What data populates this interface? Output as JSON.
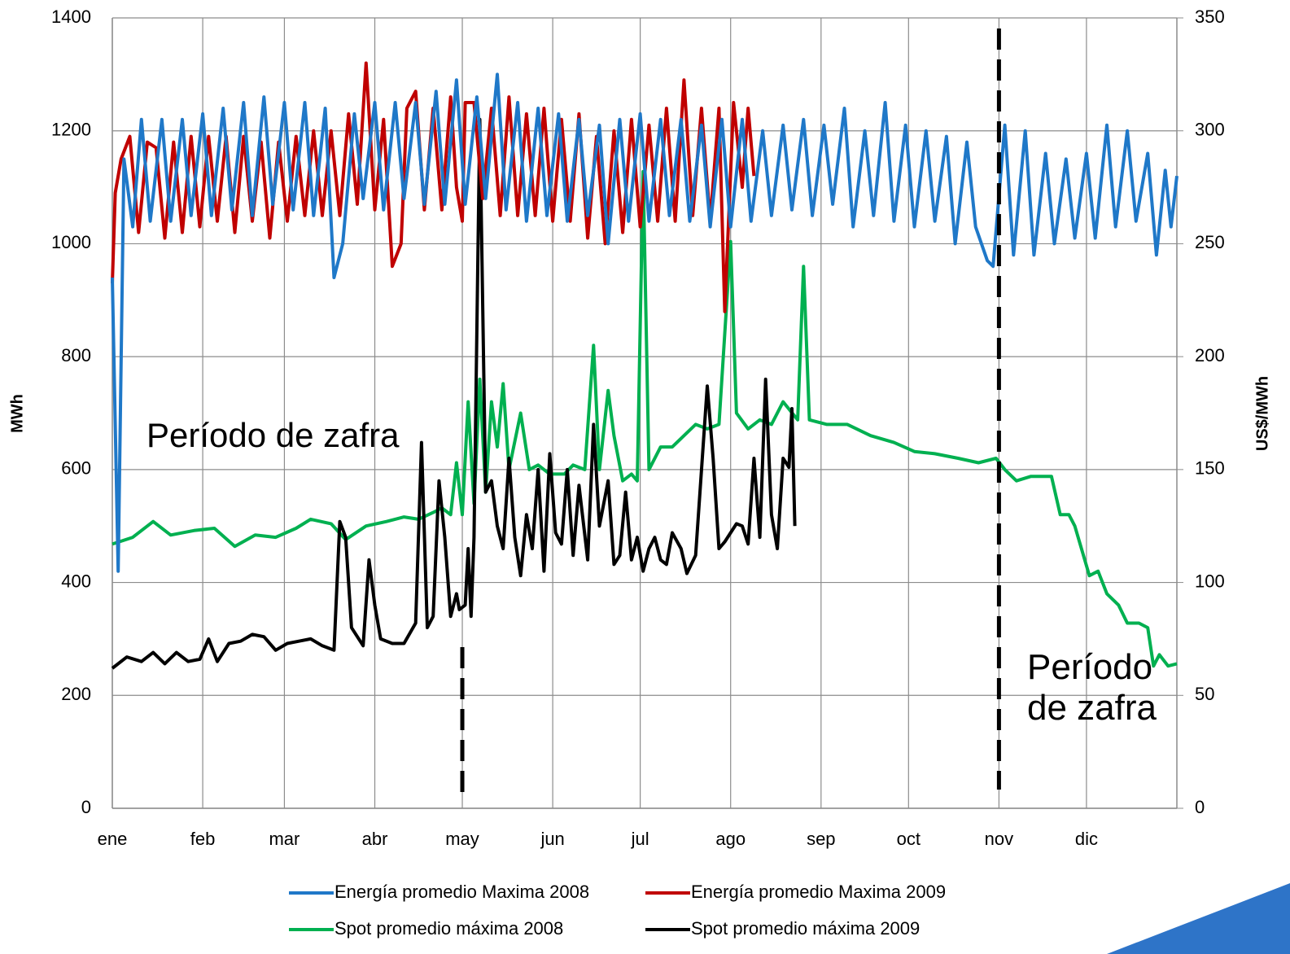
{
  "chart_data": {
    "type": "line",
    "y_label": "MWh",
    "y2_label": "US$/MWh",
    "xlim": [
      0,
      365
    ],
    "xticks": [
      {
        "value": 0,
        "label": "ene"
      },
      {
        "value": 31,
        "label": "feb"
      },
      {
        "value": 59,
        "label": "mar"
      },
      {
        "value": 90,
        "label": "abr"
      },
      {
        "value": 120,
        "label": "may"
      },
      {
        "value": 151,
        "label": "jun"
      },
      {
        "value": 181,
        "label": "jul"
      },
      {
        "value": 212,
        "label": "ago"
      },
      {
        "value": 243,
        "label": "sep"
      },
      {
        "value": 273,
        "label": "oct"
      },
      {
        "value": 304,
        "label": "nov"
      },
      {
        "value": 334,
        "label": "dic"
      }
    ],
    "ylim": [
      0,
      1400
    ],
    "yticks": [
      0,
      200,
      400,
      600,
      800,
      1000,
      1200,
      1400
    ],
    "y2lim": [
      0,
      350
    ],
    "y2ticks": [
      0,
      50,
      100,
      150,
      200,
      250,
      300,
      350
    ],
    "grid": true,
    "vlines": [
      120,
      304
    ],
    "annotations": [
      "Período de zafra",
      "Período de zafra"
    ],
    "series": [
      {
        "name": "Energía promedio Maxima 2008",
        "color": "#1f78c8",
        "x": [
          0,
          2,
          4,
          7,
          10,
          13,
          17,
          20,
          24,
          27,
          31,
          34,
          38,
          41,
          45,
          48,
          52,
          55,
          59,
          62,
          66,
          69,
          73,
          76,
          79,
          83,
          86,
          90,
          93,
          97,
          100,
          104,
          107,
          111,
          114,
          118,
          121,
          125,
          128,
          132,
          135,
          139,
          142,
          146,
          149,
          153,
          156,
          160,
          163,
          167,
          170,
          174,
          177,
          181,
          184,
          188,
          191,
          195,
          198,
          202,
          205,
          209,
          212,
          216,
          219,
          223,
          226,
          230,
          233,
          237,
          240,
          244,
          247,
          251,
          254,
          258,
          261,
          265,
          268,
          272,
          275,
          279,
          282,
          286,
          289,
          293,
          296,
          300,
          302,
          306,
          309,
          313,
          316,
          320,
          323,
          327,
          330,
          334,
          337,
          341,
          344,
          348,
          351,
          355,
          358,
          361,
          363,
          365
        ],
        "values": [
          940,
          420,
          1150,
          1030,
          1220,
          1040,
          1220,
          1040,
          1220,
          1050,
          1230,
          1050,
          1240,
          1060,
          1250,
          1050,
          1260,
          1070,
          1250,
          1060,
          1250,
          1050,
          1240,
          940,
          1000,
          1230,
          1080,
          1250,
          1060,
          1250,
          1080,
          1250,
          1070,
          1270,
          1070,
          1290,
          1070,
          1260,
          1080,
          1300,
          1060,
          1250,
          1040,
          1240,
          1050,
          1230,
          1040,
          1220,
          1050,
          1210,
          1000,
          1220,
          1040,
          1230,
          1040,
          1220,
          1050,
          1220,
          1040,
          1210,
          1030,
          1220,
          1030,
          1220,
          1040,
          1200,
          1050,
          1210,
          1060,
          1220,
          1050,
          1210,
          1070,
          1240,
          1030,
          1200,
          1050,
          1250,
          1040,
          1210,
          1030,
          1200,
          1040,
          1190,
          1000,
          1180,
          1030,
          970,
          960,
          1210,
          980,
          1200,
          980,
          1160,
          1000,
          1150,
          1010,
          1160,
          1010,
          1210,
          1030,
          1200,
          1040,
          1160,
          980,
          1130,
          1030,
          1120
        ]
      },
      {
        "name": "Energía promedio Maxima 2009",
        "color": "#c00000",
        "x": [
          0,
          1,
          3,
          6,
          9,
          12,
          15,
          18,
          21,
          24,
          27,
          30,
          33,
          36,
          39,
          42,
          45,
          48,
          51,
          54,
          57,
          60,
          63,
          66,
          69,
          72,
          75,
          78,
          81,
          84,
          87,
          90,
          93,
          96,
          99,
          101,
          104,
          107,
          110,
          113,
          116,
          118,
          120,
          121,
          124,
          127,
          130,
          133,
          136,
          139,
          142,
          145,
          148,
          151,
          154,
          157,
          160,
          163,
          166,
          169,
          172,
          175,
          178,
          181,
          184,
          187,
          190,
          193,
          196,
          199,
          202,
          205,
          208,
          210,
          213,
          216,
          218,
          220
        ],
        "values": [
          930,
          1090,
          1150,
          1190,
          1020,
          1180,
          1170,
          1010,
          1180,
          1020,
          1190,
          1030,
          1190,
          1040,
          1190,
          1020,
          1190,
          1040,
          1180,
          1010,
          1180,
          1040,
          1190,
          1050,
          1200,
          1050,
          1200,
          1050,
          1230,
          1070,
          1320,
          1060,
          1220,
          960,
          1000,
          1240,
          1270,
          1060,
          1240,
          1060,
          1260,
          1100,
          1040,
          1250,
          1250,
          1080,
          1240,
          1050,
          1260,
          1050,
          1230,
          1050,
          1240,
          1040,
          1220,
          1040,
          1230,
          1010,
          1190,
          1000,
          1200,
          1020,
          1220,
          1030,
          1210,
          1040,
          1240,
          1040,
          1290,
          1050,
          1240,
          1040,
          1240,
          880,
          1250,
          1100,
          1240,
          1120
        ]
      },
      {
        "name": "Spot promedio máxima 2008",
        "color": "#00b050",
        "axis": "y2",
        "x": [
          0,
          7,
          14,
          20,
          28,
          35,
          42,
          49,
          56,
          63,
          68,
          75,
          80,
          87,
          94,
          100,
          105,
          110,
          113,
          116,
          118,
          120,
          122,
          124,
          126,
          128,
          130,
          132,
          134,
          136,
          140,
          143,
          146,
          150,
          155,
          158,
          162,
          165,
          167,
          170,
          172,
          175,
          178,
          180,
          182,
          184,
          188,
          192,
          196,
          200,
          204,
          208,
          212,
          214,
          218,
          222,
          226,
          230,
          235,
          237,
          239,
          245,
          252,
          260,
          268,
          275,
          282,
          290,
          297,
          303,
          306,
          310,
          315,
          322,
          325,
          328,
          330,
          335,
          338,
          341,
          345,
          348,
          352,
          355,
          357,
          359,
          362,
          365
        ],
        "values": [
          117,
          120,
          127,
          121,
          123,
          124,
          116,
          121,
          120,
          124,
          128,
          126,
          119,
          125,
          127,
          129,
          128,
          131,
          133,
          130,
          153,
          130,
          180,
          135,
          190,
          140,
          180,
          160,
          188,
          150,
          175,
          150,
          152,
          148,
          148,
          152,
          150,
          205,
          150,
          185,
          165,
          145,
          148,
          145,
          282,
          150,
          160,
          160,
          165,
          170,
          168,
          170,
          251,
          175,
          168,
          172,
          170,
          180,
          172,
          240,
          172,
          170,
          170,
          165,
          162,
          158,
          157,
          155,
          153,
          155,
          150,
          145,
          147,
          147,
          130,
          130,
          125,
          103,
          105,
          95,
          90,
          82,
          82,
          80,
          63,
          68,
          63,
          64
        ]
      },
      {
        "name": "Spot promedio máxima 2009",
        "color": "#000000",
        "axis": "y2",
        "x": [
          0,
          5,
          10,
          14,
          18,
          22,
          26,
          30,
          33,
          36,
          40,
          44,
          48,
          52,
          56,
          60,
          64,
          68,
          72,
          76,
          78,
          80,
          82,
          86,
          88,
          90,
          92,
          96,
          100,
          104,
          106,
          108,
          110,
          112,
          114,
          116,
          118,
          119,
          121,
          122,
          123,
          124,
          126,
          128,
          130,
          132,
          134,
          136,
          138,
          140,
          142,
          144,
          146,
          148,
          150,
          152,
          154,
          156,
          158,
          160,
          163,
          165,
          167,
          170,
          172,
          174,
          176,
          178,
          180,
          182,
          184,
          186,
          188,
          190,
          192,
          195,
          197,
          200,
          204,
          206,
          208,
          210,
          214,
          216,
          218,
          220,
          222,
          224,
          226,
          228,
          230,
          232,
          233,
          234
        ],
        "values": [
          62,
          67,
          65,
          69,
          64,
          69,
          65,
          66,
          75,
          65,
          73,
          74,
          77,
          76,
          70,
          73,
          74,
          75,
          72,
          70,
          127,
          120,
          80,
          72,
          110,
          90,
          75,
          73,
          73,
          82,
          162,
          80,
          85,
          145,
          120,
          85,
          95,
          88,
          90,
          115,
          85,
          120,
          305,
          140,
          145,
          125,
          115,
          155,
          120,
          103,
          130,
          115,
          150,
          105,
          157,
          122,
          117,
          150,
          112,
          143,
          110,
          170,
          125,
          145,
          108,
          112,
          140,
          110,
          120,
          105,
          115,
          120,
          110,
          108,
          122,
          115,
          104,
          112,
          187,
          155,
          115,
          118,
          126,
          125,
          117,
          155,
          120,
          190,
          130,
          115,
          155,
          151,
          177,
          125
        ]
      }
    ]
  }
}
